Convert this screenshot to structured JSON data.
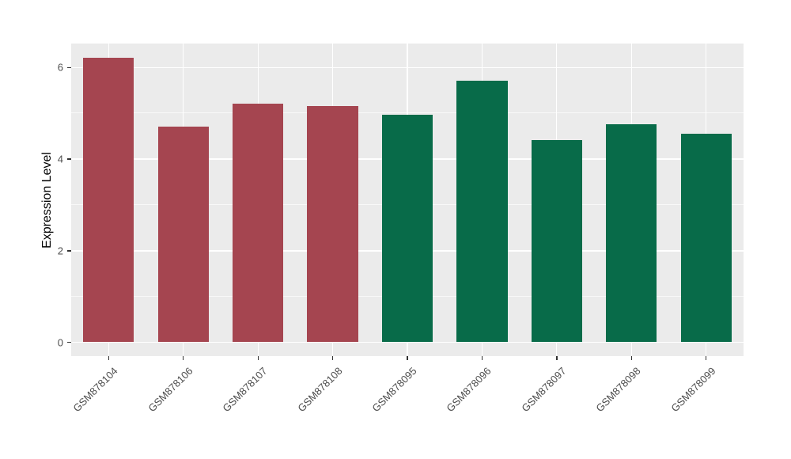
{
  "chart_data": {
    "type": "bar",
    "title": "",
    "xlabel": "",
    "ylabel": "Expression Level",
    "categories": [
      "GSM878104",
      "GSM878106",
      "GSM878107",
      "GSM878108",
      "GSM878095",
      "GSM878096",
      "GSM878097",
      "GSM878098",
      "GSM878099"
    ],
    "values": [
      6.2,
      4.7,
      5.2,
      5.15,
      4.95,
      5.7,
      4.4,
      4.75,
      4.55
    ],
    "bar_colors": [
      "#A54550",
      "#A54550",
      "#A54550",
      "#A54550",
      "#086B49",
      "#086B49",
      "#086B49",
      "#086B49",
      "#086B49"
    ],
    "group_colors": {
      "red_group": "#A54550",
      "green_group": "#086B49"
    },
    "ylim": [
      -0.31,
      6.51
    ],
    "yticks": [
      0,
      2,
      4,
      6
    ],
    "yminor": [
      1,
      3,
      5
    ],
    "grid": true,
    "legend": "none",
    "panel_bg": "#EBEBEB",
    "grid_color": "#FFFFFF",
    "tick_label_color": "#4D4D4D",
    "axis_title_color": "#000000"
  }
}
